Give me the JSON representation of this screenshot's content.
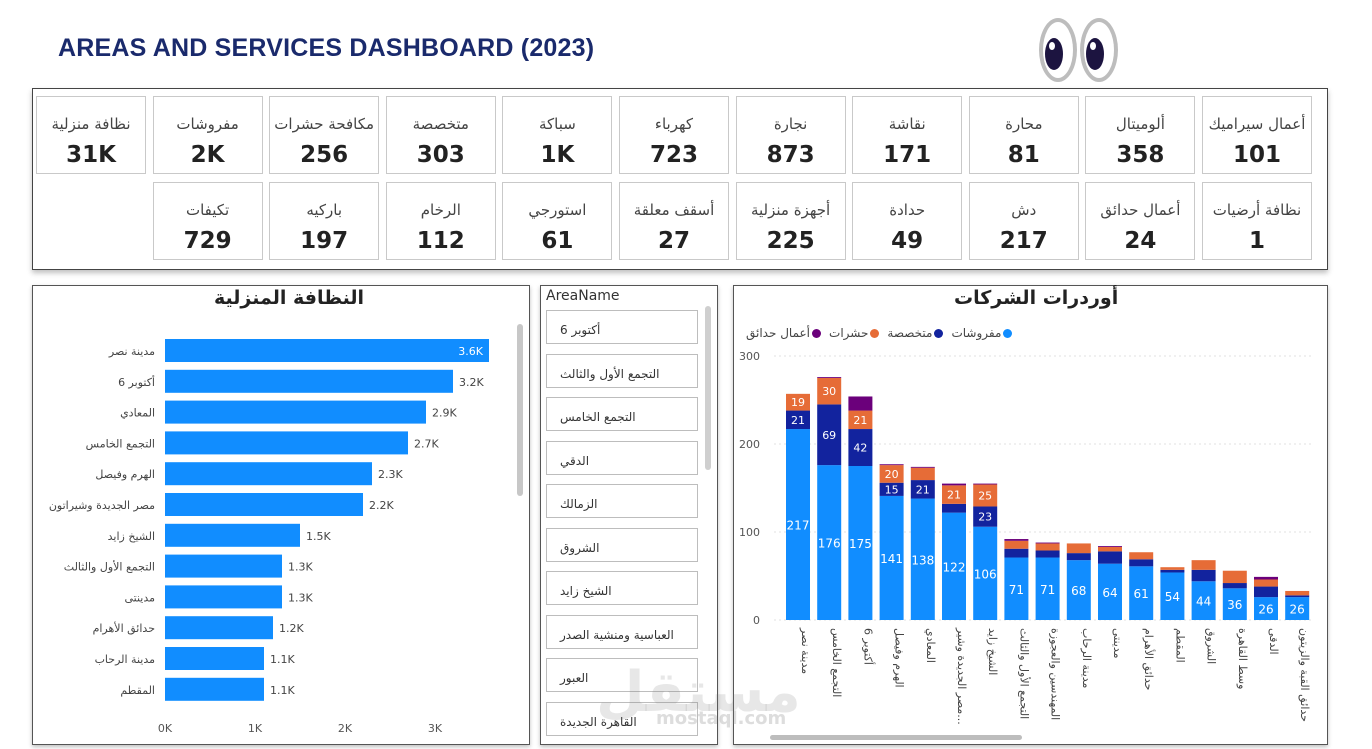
{
  "header": {
    "title": "AREAS AND SERVICES DASHBOARD (2023)"
  },
  "kpis": [
    {
      "label": "أعمال سيراميك",
      "value": "101"
    },
    {
      "label": "ألوميتال",
      "value": "358"
    },
    {
      "label": "محارة",
      "value": "81"
    },
    {
      "label": "نقاشة",
      "value": "171"
    },
    {
      "label": "نجارة",
      "value": "873"
    },
    {
      "label": "كهرباء",
      "value": "723"
    },
    {
      "label": "سباكة",
      "value": "1K"
    },
    {
      "label": "متخصصة",
      "value": "303"
    },
    {
      "label": "مكافحة حشرات",
      "value": "256"
    },
    {
      "label": "مفروشات",
      "value": "2K"
    },
    {
      "label": "نظافة منزلية",
      "value": "31K"
    },
    {
      "label": "نظافة أرضيات",
      "value": "1"
    },
    {
      "label": "أعمال حدائق",
      "value": "24"
    },
    {
      "label": "دش",
      "value": "217"
    },
    {
      "label": "حدادة",
      "value": "49"
    },
    {
      "label": "أجهزة منزلية",
      "value": "225"
    },
    {
      "label": "أسقف معلقة",
      "value": "27"
    },
    {
      "label": "استورجي",
      "value": "61"
    },
    {
      "label": "الرخام",
      "value": "112"
    },
    {
      "label": "باركيه",
      "value": "197"
    },
    {
      "label": "تكيفات",
      "value": "729"
    }
  ],
  "slicer": {
    "header": "AreaName",
    "items": [
      "أكتوبر 6",
      "التجمع الأول والثالث",
      "التجمع الخامس",
      "الدقي",
      "الزمالك",
      "الشروق",
      "الشيخ زايد",
      "العباسية ومنشية الصدر",
      "العبور",
      "القاهرة الجديدة"
    ]
  },
  "watermark": {
    "main": "مستقل",
    "sub": "mostaql.com"
  },
  "chart_data": [
    {
      "type": "bar",
      "orientation": "horizontal",
      "title": "النظافة المنزلية",
      "categories": [
        "مدينة نصر",
        "أكتوبر 6",
        "المعادي",
        "التجمع الخامس",
        "الهرم وفيصل",
        "مصر الجديدة وشيراتون",
        "الشيخ زايد",
        "التجمع الأول والثالث",
        "مدينتى",
        "حدائق الأهرام",
        "مدينة الرحاب",
        "المقطم"
      ],
      "values": [
        3600,
        3200,
        2900,
        2700,
        2300,
        2200,
        1500,
        1300,
        1300,
        1200,
        1100,
        1100
      ],
      "data_labels": [
        "3.6K",
        "3.2K",
        "2.9K",
        "2.7K",
        "2.3K",
        "2.2K",
        "1.5K",
        "1.3K",
        "1.3K",
        "1.2K",
        "1.1K",
        "1.1K"
      ],
      "x_ticks": [
        "0K",
        "1K",
        "2K",
        "3K"
      ],
      "xlim": [
        0,
        3600
      ],
      "color": "#118dff"
    },
    {
      "type": "bar",
      "stacked": true,
      "title": "أوردرات الشركات",
      "categories": [
        "مدينة نصر",
        "التجمع الخامس",
        "أكتوبر 6",
        "الهرم وفيصل",
        "المعادي",
        "مصر الجديدة وشير...",
        "الشيخ زايد",
        "التجمع الأول والثالث",
        "المهندسين والعجوزة",
        "مدينة الرحاب",
        "مدينتى",
        "حدائق الأهرام",
        "المقطم",
        "الشروق",
        "وسط القاهرة",
        "الدقى",
        "حدائق القبة والزيتون"
      ],
      "series": [
        {
          "name": "مفروشات",
          "color": "#118dff",
          "values": [
            217,
            176,
            175,
            141,
            138,
            122,
            106,
            71,
            71,
            68,
            64,
            61,
            54,
            44,
            36,
            26,
            26
          ]
        },
        {
          "name": "متخصصة",
          "color": "#12239e",
          "values": [
            21,
            69,
            42,
            15,
            21,
            10,
            23,
            10,
            8,
            8,
            14,
            8,
            3,
            13,
            6,
            12,
            2
          ]
        },
        {
          "name": "حشرات",
          "color": "#e66c37",
          "values": [
            19,
            30,
            21,
            20,
            14,
            21,
            25,
            9,
            8,
            11,
            5,
            8,
            3,
            11,
            14,
            8,
            5
          ]
        },
        {
          "name": "أعمال حدائق",
          "color": "#6b007b",
          "values": [
            0,
            1,
            16,
            1,
            1,
            2,
            1,
            2,
            1,
            0,
            1,
            0,
            0,
            0,
            0,
            3,
            0
          ]
        }
      ],
      "y_ticks": [
        "0",
        "100",
        "200",
        "300"
      ],
      "ylim": [
        0,
        300
      ]
    }
  ]
}
